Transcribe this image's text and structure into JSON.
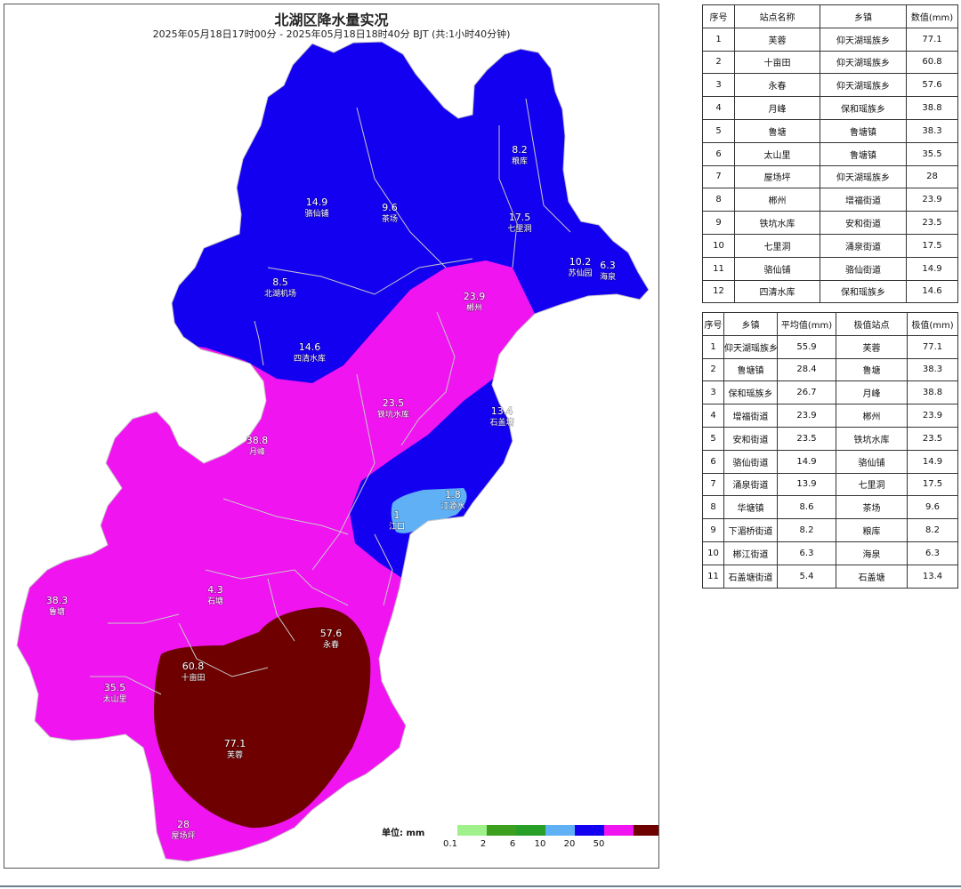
{
  "map": {
    "title": "北湖区降水量实况",
    "subtitle": "2025年05月18日17时00分 - 2025年05月18日18时40分 BJT (共:1小时40分钟)",
    "unit_label": "单位: mm",
    "colors": {
      "blue": "#1400f0",
      "magenta": "#f014f0",
      "maroon": "#6e0000",
      "light_blue": "#5fb0f5",
      "boundary": "#c8c8c8"
    },
    "legend": {
      "ticks": [
        "0.1",
        "2",
        "6",
        "10",
        "20",
        "50"
      ],
      "colors": [
        "#a0f08c",
        "#3ca01e",
        "#28a028",
        "#5fb0f5",
        "#1400f0",
        "#f014f0",
        "#6e0000"
      ]
    },
    "stations": [
      {
        "value": "14.9",
        "name": "骆仙铺"
      },
      {
        "value": "9.6",
        "name": "茶场"
      },
      {
        "value": "8.2",
        "name": "粮库"
      },
      {
        "value": "17.5",
        "name": "七里洞"
      },
      {
        "value": "10.2",
        "name": "苏仙园"
      },
      {
        "value": "6.3",
        "name": "海泉"
      },
      {
        "value": "8.5",
        "name": "北湖机场"
      },
      {
        "value": "23.9",
        "name": "郴州"
      },
      {
        "value": "14.6",
        "name": "四清水库"
      },
      {
        "value": "23.5",
        "name": "铁坑水库"
      },
      {
        "value": "13.4",
        "name": "石盖塘"
      },
      {
        "value": "38.8",
        "name": "月峰"
      },
      {
        "value": "1.8",
        "name": "江源水"
      },
      {
        "value": "1",
        "name": "江口"
      },
      {
        "value": "4.3",
        "name": "石塘"
      },
      {
        "value": "38.3",
        "name": "鲁塘"
      },
      {
        "value": "57.6",
        "name": "永春"
      },
      {
        "value": "60.8",
        "name": "十亩田"
      },
      {
        "value": "35.5",
        "name": "太山里"
      },
      {
        "value": "77.1",
        "name": "芙蓉"
      },
      {
        "value": "28",
        "name": "屋场坪"
      }
    ]
  },
  "station_table": {
    "headers": [
      "序号",
      "站点名称",
      "乡镇",
      "数值(mm)"
    ],
    "rows": [
      [
        "1",
        "芙蓉",
        "仰天湖瑶族乡",
        "77.1"
      ],
      [
        "2",
        "十亩田",
        "仰天湖瑶族乡",
        "60.8"
      ],
      [
        "3",
        "永春",
        "仰天湖瑶族乡",
        "57.6"
      ],
      [
        "4",
        "月峰",
        "保和瑶族乡",
        "38.8"
      ],
      [
        "5",
        "鲁塘",
        "鲁塘镇",
        "38.3"
      ],
      [
        "6",
        "太山里",
        "鲁塘镇",
        "35.5"
      ],
      [
        "7",
        "屋场坪",
        "仰天湖瑶族乡",
        "28"
      ],
      [
        "8",
        "郴州",
        "增福街道",
        "23.9"
      ],
      [
        "9",
        "铁坑水库",
        "安和街道",
        "23.5"
      ],
      [
        "10",
        "七里洞",
        "涌泉街道",
        "17.5"
      ],
      [
        "11",
        "骆仙铺",
        "骆仙街道",
        "14.9"
      ],
      [
        "12",
        "四清水库",
        "保和瑶族乡",
        "14.6"
      ]
    ]
  },
  "town_table": {
    "headers": [
      "序号",
      "乡镇",
      "平均值(mm)",
      "极值站点",
      "极值(mm)"
    ],
    "rows": [
      [
        "1",
        "仰天湖瑶族乡",
        "55.9",
        "芙蓉",
        "77.1"
      ],
      [
        "2",
        "鲁塘镇",
        "28.4",
        "鲁塘",
        "38.3"
      ],
      [
        "3",
        "保和瑶族乡",
        "26.7",
        "月峰",
        "38.8"
      ],
      [
        "4",
        "增福街道",
        "23.9",
        "郴州",
        "23.9"
      ],
      [
        "5",
        "安和街道",
        "23.5",
        "铁坑水库",
        "23.5"
      ],
      [
        "6",
        "骆仙街道",
        "14.9",
        "骆仙铺",
        "14.9"
      ],
      [
        "7",
        "涌泉街道",
        "13.9",
        "七里洞",
        "17.5"
      ],
      [
        "8",
        "华塘镇",
        "8.6",
        "茶场",
        "9.6"
      ],
      [
        "9",
        "下湄桥街道",
        "8.2",
        "粮库",
        "8.2"
      ],
      [
        "10",
        "郴江街道",
        "6.3",
        "海泉",
        "6.3"
      ],
      [
        "11",
        "石盖塘街道",
        "5.4",
        "石盖塘",
        "13.4"
      ]
    ]
  }
}
